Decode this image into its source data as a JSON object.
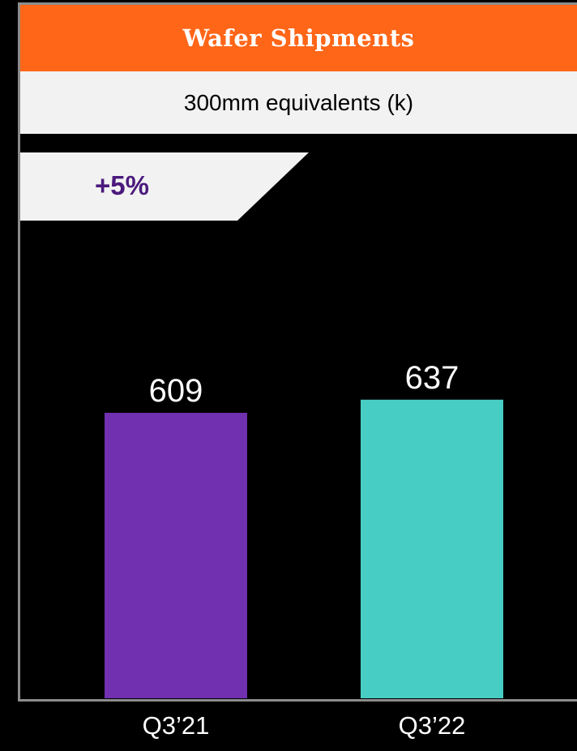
{
  "header": {
    "title": "Wafer Shipments",
    "subtitle": "300mm equivalents (k)",
    "title_bg": "#ff6618",
    "subtitle_bg": "#f2f2f2"
  },
  "growth_badge": {
    "text": "+5%",
    "bg": "#f2f2f2",
    "text_color": "#4b1a7d"
  },
  "chart_data": {
    "type": "bar",
    "title": "Wafer Shipments",
    "subtitle": "300mm equivalents (k)",
    "categories": [
      "Q3’21",
      "Q3’22"
    ],
    "values": [
      609,
      637
    ],
    "colors": [
      "#7030b0",
      "#48cdc4"
    ],
    "ylim": [
      0,
      650
    ],
    "grid": false,
    "legend": "none",
    "data_labels": [
      "609",
      "637"
    ]
  }
}
